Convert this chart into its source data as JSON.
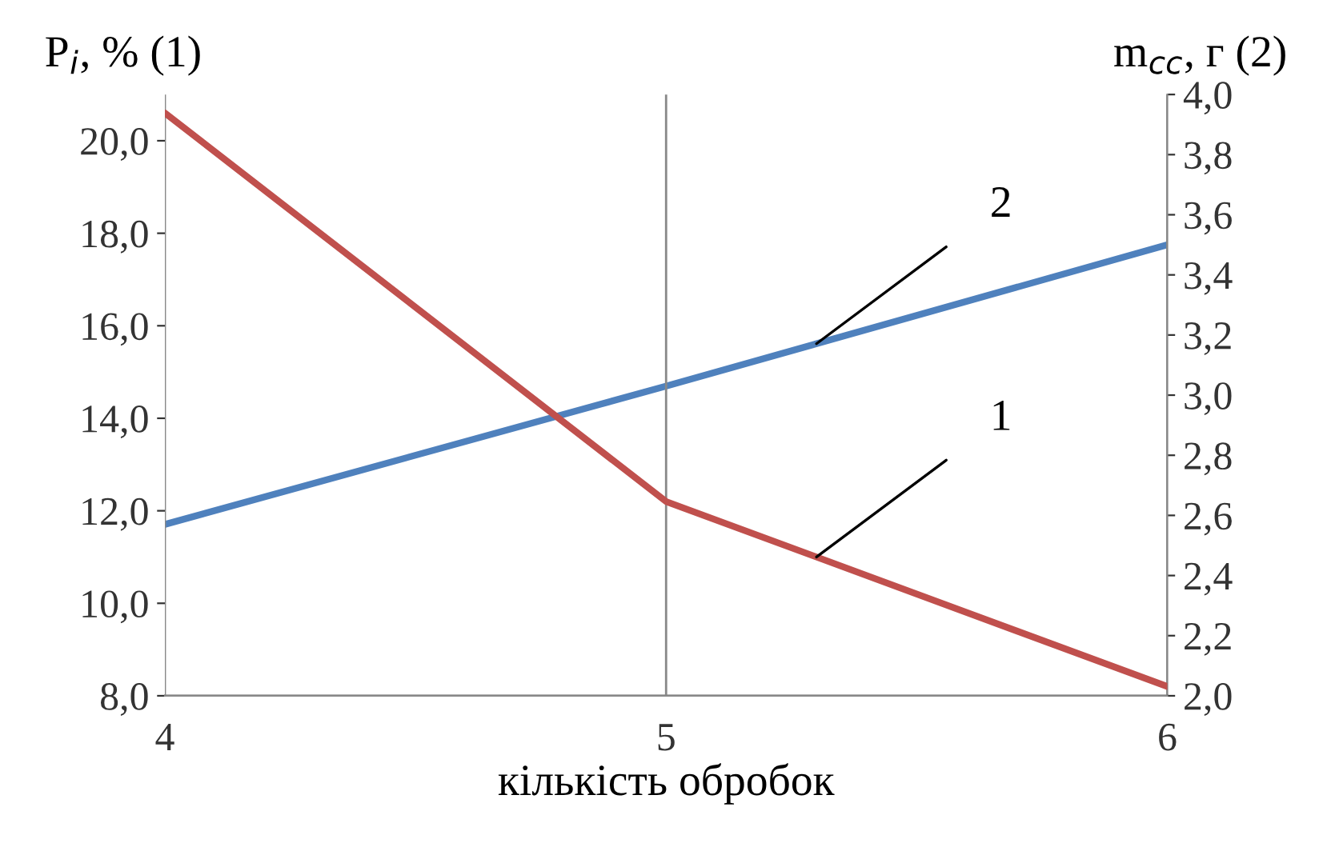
{
  "chart_data": {
    "type": "line",
    "xlabel": "кількість обробок",
    "ylabel": "P$_{i}$, % (1)",
    "y2label": "m$_{cc}$, г (2)",
    "x": [
      4,
      5,
      6
    ],
    "series": [
      {
        "color": "#c0504d",
        "values": [
          20.6,
          12.2,
          8.2
        ]
      },
      {
        "name": "2",
        "color": "#4f81bd",
        "values": [
          2.57,
          3.03,
          3.5
        ],
        "axis": "y2"
      }
    ],
    "xlim": [
      4,
      6
    ],
    "xticks": [
      4,
      5,
      6
    ],
    "ylim": [
      8,
      21
    ],
    "yticks": [
      {
        "value": 8,
        "label": "8,0"
      },
      {
        "value": 10,
        "label": "10,0"
      },
      {
        "value": 12,
        "label": "12,0"
      },
      {
        "value": 14,
        "label": "14,0"
      },
      {
        "value": 16,
        "label": "16,0"
      },
      {
        "value": 18,
        "label": "18,0"
      },
      {
        "value": 20,
        "label": "20,0"
      }
    ],
    "y2lim": [
      2,
      4
    ],
    "y2ticks": [
      {
        "value": 2,
        "label": "2,0"
      },
      {
        "value": 2.2,
        "label": "2,2"
      },
      {
        "value": 2.4,
        "label": "2,4"
      },
      {
        "value": 2.6,
        "label": "2,6"
      },
      {
        "value": 2.8,
        "label": "2,8"
      },
      {
        "value": 3,
        "label": "3,0"
      },
      {
        "value": 3.2,
        "label": "3,2"
      },
      {
        "value": 3.4,
        "label": "3,4"
      },
      {
        "value": 3.6,
        "label": "3,6"
      },
      {
        "value": 3.8,
        "label": "3,8"
      },
      {
        "value": 4,
        "label": "4,0"
      }
    ],
    "annotations": [
      {
        "text": "1",
        "x": 5.3,
        "y": 11.0
      }
    ],
    "grid": "x",
    "legend": false,
    "marker": "none",
    "line_style": "solid"
  }
}
